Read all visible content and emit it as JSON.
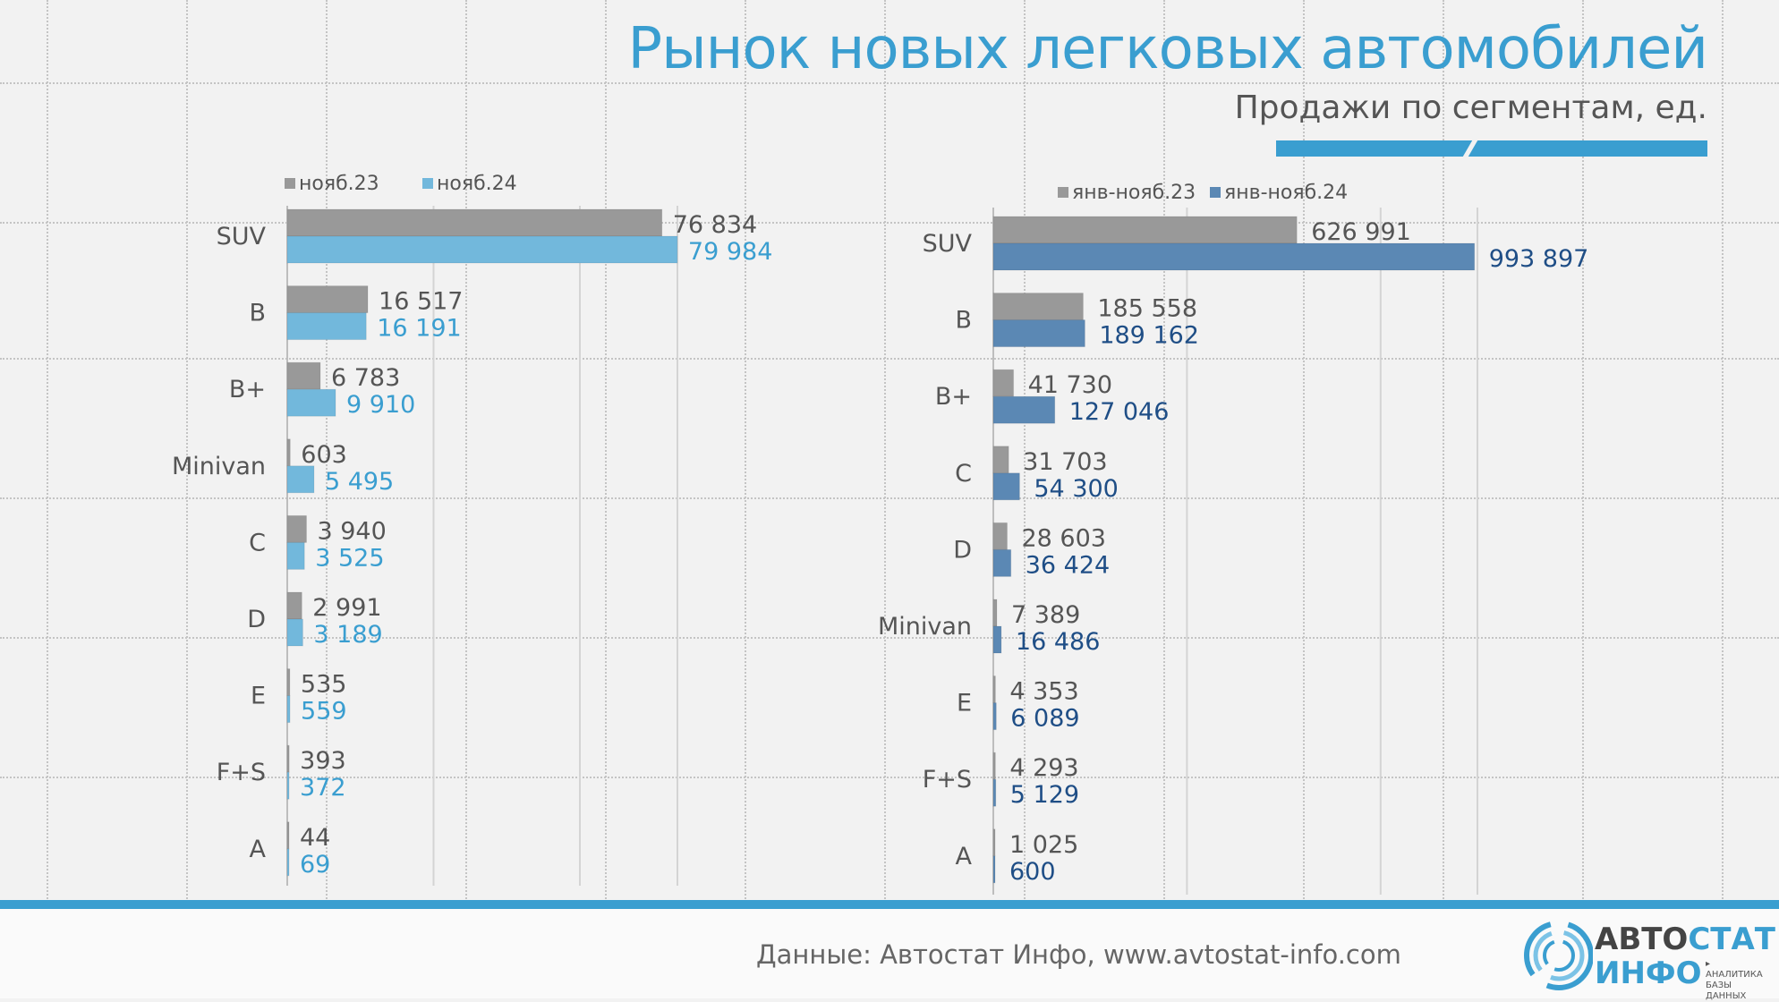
{
  "title": "Рынок новых легковых автомобилей",
  "subtitle": "Продажи по сегментам, ед.",
  "source": "Данные: Автостат Инфо, www.avtostat-info.com",
  "logo": {
    "top_a": "АВТО",
    "top_b": "СТАТ",
    "bottom": "ИНФО",
    "tagline": "▸ АНАЛИТИКА БАЗЫ ДАННЫХ"
  },
  "colors": {
    "prev": "#999999",
    "nov24": "#72b8dc",
    "ytd24": "#5b88b4",
    "nov24_text": "#3a9ed0",
    "ytd24_text": "#1f4e86"
  },
  "chart_data": [
    {
      "type": "bar",
      "orientation": "horizontal",
      "categories": [
        "SUV",
        "B",
        "B+",
        "Minivan",
        "C",
        "D",
        "E",
        "F+S",
        "A"
      ],
      "series": [
        {
          "name": "нояб.23",
          "values": [
            76834,
            16517,
            6783,
            603,
            3940,
            2991,
            535,
            393,
            44
          ],
          "labels": [
            "76 834",
            "16 517",
            "6 783",
            "603",
            "3 940",
            "2 991",
            "535",
            "393",
            "44"
          ]
        },
        {
          "name": "нояб.24",
          "values": [
            79984,
            16191,
            9910,
            5495,
            3525,
            3189,
            559,
            372,
            69
          ],
          "labels": [
            "79 984",
            "16 191",
            "9 910",
            "5 495",
            "3 525",
            "3 189",
            "559",
            "372",
            "69"
          ]
        }
      ],
      "xlim": [
        0,
        80000
      ]
    },
    {
      "type": "bar",
      "orientation": "horizontal",
      "categories": [
        "SUV",
        "B",
        "B+",
        "C",
        "D",
        "Minivan",
        "E",
        "F+S",
        "A"
      ],
      "series": [
        {
          "name": "янв-нояб.23",
          "values": [
            626991,
            185558,
            41730,
            31703,
            28603,
            7389,
            4353,
            4293,
            1025
          ],
          "labels": [
            "626 991",
            "185 558",
            "41 730",
            "31 703",
            "28 603",
            "7 389",
            "4 353",
            "4 293",
            "1 025"
          ]
        },
        {
          "name": "янв-нояб.24",
          "values": [
            993897,
            189162,
            127046,
            54300,
            36424,
            16486,
            6089,
            5129,
            600
          ],
          "labels": [
            "993 897",
            "189 162",
            "127 046",
            "54 300",
            "36 424",
            "16 486",
            "6 089",
            "5 129",
            "600"
          ]
        }
      ],
      "xlim": [
        0,
        1000000
      ]
    }
  ]
}
